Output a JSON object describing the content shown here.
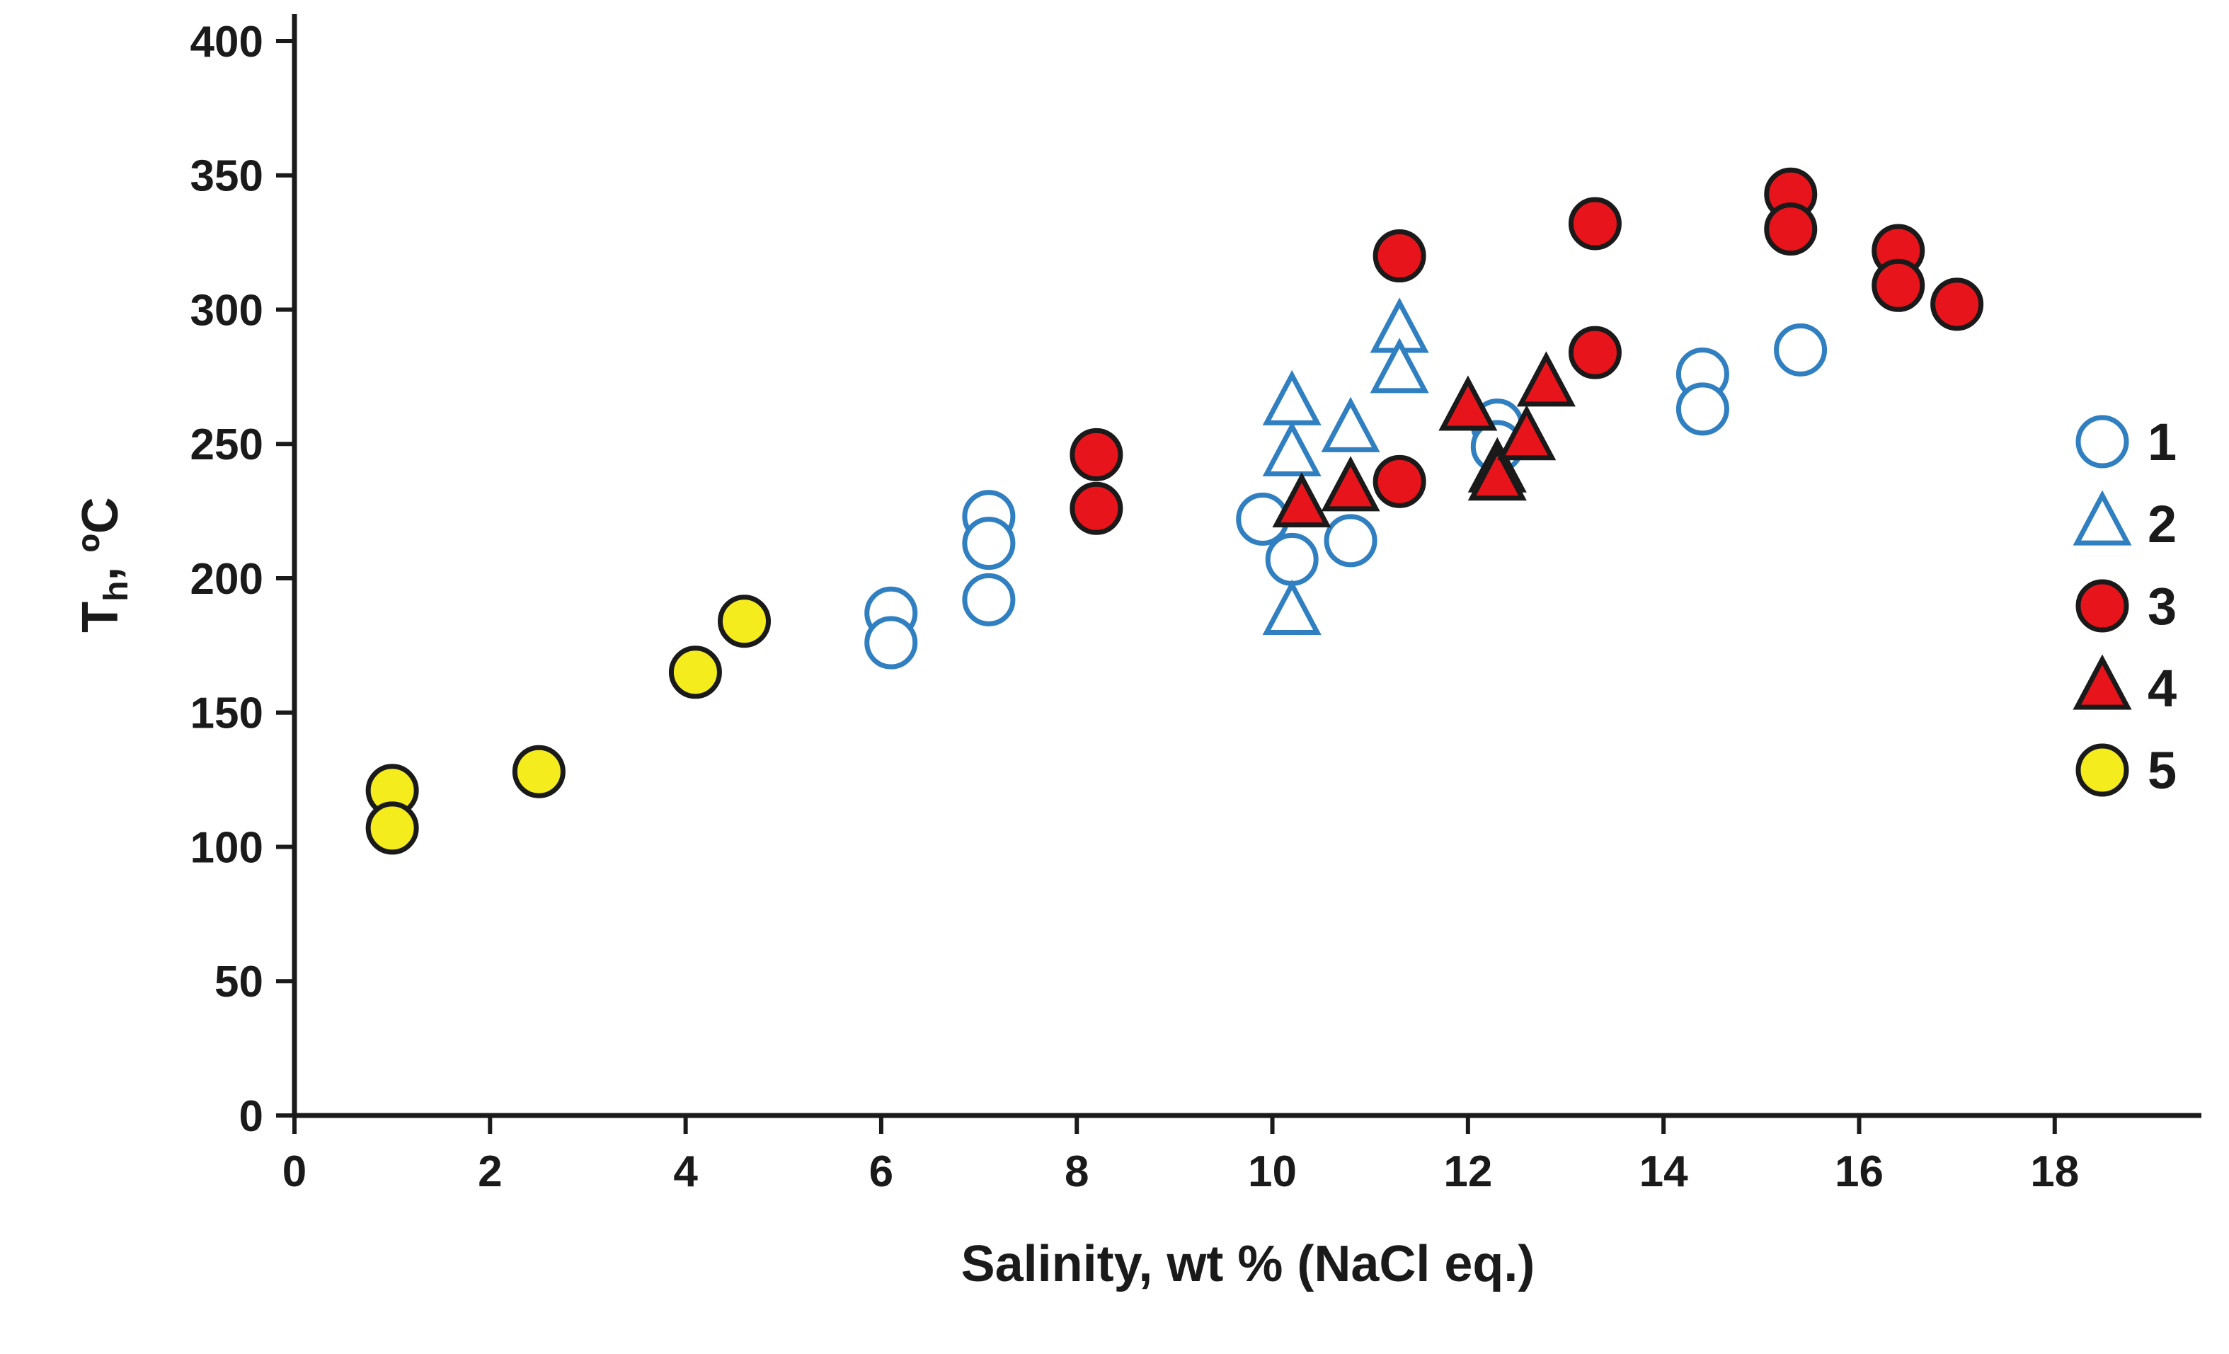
{
  "chart_data": {
    "type": "scatter",
    "title": "",
    "xlabel": "Salinity, wt % (NaCl eq.)",
    "ylabel": {
      "main": "T",
      "sub": "h",
      "rest": ", ºC"
    },
    "xlim": [
      0,
      19.5
    ],
    "ylim": [
      0,
      410
    ],
    "xticks": [
      0,
      2,
      4,
      6,
      8,
      10,
      12,
      14,
      16,
      18
    ],
    "yticks": [
      0,
      50,
      100,
      150,
      200,
      250,
      300,
      350,
      400
    ],
    "grid": false,
    "legend_position": "right",
    "series": [
      {
        "name": "1",
        "marker": "circle",
        "fill": "#ffffff",
        "stroke": "#2f7fc1",
        "points": [
          [
            6.1,
            187
          ],
          [
            6.1,
            176
          ],
          [
            7.1,
            223
          ],
          [
            7.1,
            213
          ],
          [
            7.1,
            192
          ],
          [
            9.9,
            222
          ],
          [
            10.2,
            207
          ],
          [
            10.8,
            214
          ],
          [
            12.3,
            257
          ],
          [
            12.3,
            249
          ],
          [
            14.4,
            276
          ],
          [
            14.4,
            263
          ],
          [
            15.4,
            285
          ]
        ]
      },
      {
        "name": "2",
        "marker": "triangle",
        "fill": "#ffffff",
        "stroke": "#2f7fc1",
        "points": [
          [
            10.2,
            265
          ],
          [
            10.2,
            246
          ],
          [
            10.2,
            187
          ],
          [
            10.8,
            255
          ],
          [
            11.3,
            292
          ],
          [
            11.3,
            277
          ]
        ]
      },
      {
        "name": "3",
        "marker": "circle",
        "fill": "#e8141b",
        "stroke": "#1a1a1a",
        "points": [
          [
            8.2,
            246
          ],
          [
            8.2,
            226
          ],
          [
            11.3,
            320
          ],
          [
            11.3,
            236
          ],
          [
            13.3,
            332
          ],
          [
            13.3,
            284
          ],
          [
            15.3,
            343
          ],
          [
            15.3,
            330
          ],
          [
            16.4,
            322
          ],
          [
            16.4,
            309
          ],
          [
            17.0,
            302
          ]
        ]
      },
      {
        "name": "4",
        "marker": "triangle",
        "fill": "#e8141b",
        "stroke": "#1a1a1a",
        "points": [
          [
            10.3,
            227
          ],
          [
            10.8,
            233
          ],
          [
            12.0,
            263
          ],
          [
            12.3,
            240
          ],
          [
            12.3,
            237
          ],
          [
            12.6,
            252
          ],
          [
            12.8,
            272
          ]
        ]
      },
      {
        "name": "5",
        "marker": "circle",
        "fill": "#f5ec1e",
        "stroke": "#1a1a1a",
        "points": [
          [
            1.0,
            121
          ],
          [
            1.0,
            107
          ],
          [
            2.5,
            128
          ],
          [
            4.1,
            165
          ],
          [
            4.6,
            184
          ]
        ]
      }
    ]
  }
}
